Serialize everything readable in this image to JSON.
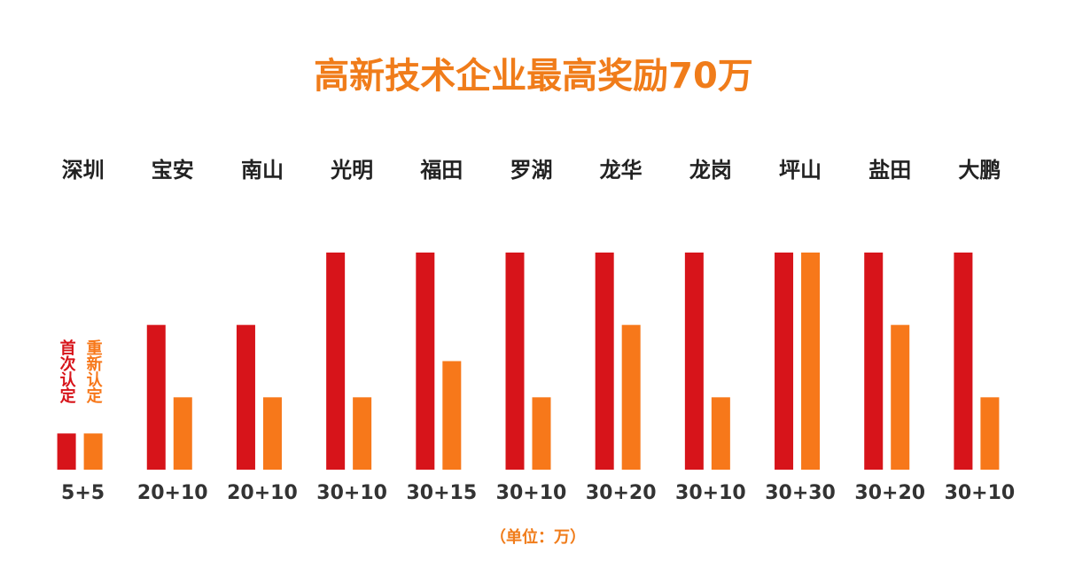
{
  "chart_data": {
    "type": "bar",
    "title": "高新技术企业最高奖励70万",
    "unit": "（单位：万）",
    "categories": [
      "深圳",
      "宝安",
      "南山",
      "光明",
      "福田",
      "罗湖",
      "龙华",
      "龙岗",
      "坪山",
      "盐田",
      "大鹏"
    ],
    "labels": [
      "5+5",
      "20+10",
      "20+10",
      "30+10",
      "30+15",
      "30+10",
      "30+20",
      "30+10",
      "30+30",
      "30+20",
      "30+10"
    ],
    "series": [
      {
        "name": "首次认定",
        "color": "#d7141a",
        "values": [
          5,
          20,
          20,
          30,
          30,
          30,
          30,
          30,
          30,
          30,
          30
        ]
      },
      {
        "name": "重新认定",
        "color": "#f7781a",
        "values": [
          5,
          10,
          10,
          10,
          15,
          10,
          20,
          10,
          30,
          20,
          10
        ]
      }
    ],
    "ylim": [
      0,
      30
    ],
    "title_color": "#f07c1a"
  }
}
